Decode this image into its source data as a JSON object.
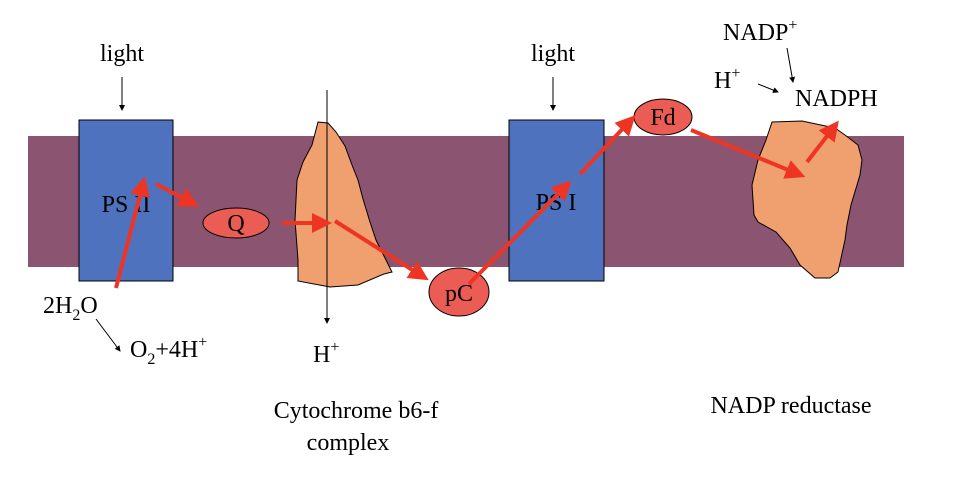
{
  "colors": {
    "membrane": "#8B5470",
    "photosystem": "#4F72BE",
    "complex": "#F09F6E",
    "carrier": "#EB5C55",
    "electron_arrow": "#EE3524"
  },
  "labels": {
    "light_ps2": "light",
    "light_ps1": "light",
    "ps2": "PS II",
    "ps1": "PS I",
    "q": "Q",
    "pc": "pC",
    "fd": "Fd",
    "water": {
      "a": "2H",
      "sub": "2",
      "b": "O"
    },
    "oxygen": {
      "a": "O",
      "sub": "2",
      "b": "+4H",
      "sup": "+"
    },
    "proton_cyt": {
      "a": "H",
      "sup": "+"
    },
    "cytochrome_line1": "Cytochrome b6-f",
    "cytochrome_line2": "complex",
    "nadp_reductase": "NADP reductase",
    "nadp": {
      "a": "NADP",
      "sup": "+"
    },
    "proton_nadp": {
      "a": "H",
      "sup": "+"
    },
    "nadph": "NADPH"
  }
}
